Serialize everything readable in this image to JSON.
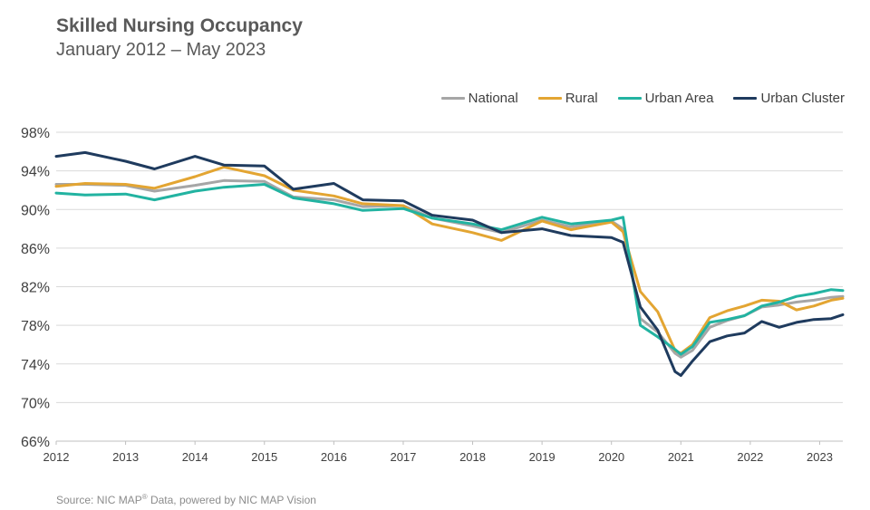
{
  "header": {
    "title": "Skilled Nursing Occupancy",
    "subtitle": "January 2012 –  May 2023"
  },
  "source": {
    "prefix": "Source: NIC MAP",
    "reg": "®",
    "suffix": " Data, powered by NIC MAP Vision"
  },
  "chart_data": {
    "type": "line",
    "title": "Skilled Nursing Occupancy",
    "subtitle": "January 2012 –  May 2023",
    "xlabel": "",
    "ylabel": "",
    "x_start": "2012-01",
    "x_end": "2023-05",
    "x_ticks": [
      "2012",
      "2013",
      "2014",
      "2015",
      "2016",
      "2017",
      "2018",
      "2019",
      "2020",
      "2021",
      "2022",
      "2023"
    ],
    "y_ticks": [
      "98%",
      "94%",
      "90%",
      "86%",
      "82%",
      "78%",
      "74%",
      "70%",
      "66%"
    ],
    "ylim": [
      66,
      98
    ],
    "grid": "horizontal",
    "legend_position": "top-right",
    "series": [
      {
        "name": "National",
        "color": "#a6a6a6",
        "points": [
          [
            "2012-01",
            92.6
          ],
          [
            "2012-06",
            92.6
          ],
          [
            "2013-01",
            92.5
          ],
          [
            "2013-06",
            91.9
          ],
          [
            "2014-01",
            92.5
          ],
          [
            "2014-06",
            93.0
          ],
          [
            "2015-01",
            92.9
          ],
          [
            "2015-06",
            91.3
          ],
          [
            "2016-01",
            91.0
          ],
          [
            "2016-06",
            90.3
          ],
          [
            "2017-01",
            90.4
          ],
          [
            "2017-06",
            89.1
          ],
          [
            "2018-01",
            88.3
          ],
          [
            "2018-06",
            87.6
          ],
          [
            "2019-01",
            88.9
          ],
          [
            "2019-06",
            88.2
          ],
          [
            "2020-01",
            88.8
          ],
          [
            "2020-03",
            88.0
          ],
          [
            "2020-06",
            78.7
          ],
          [
            "2020-09",
            77.3
          ],
          [
            "2020-12",
            75.1
          ],
          [
            "2021-01",
            74.7
          ],
          [
            "2021-03",
            75.4
          ],
          [
            "2021-06",
            77.8
          ],
          [
            "2021-09",
            78.5
          ],
          [
            "2021-12",
            79.0
          ],
          [
            "2022-03",
            79.9
          ],
          [
            "2022-06",
            80.1
          ],
          [
            "2022-09",
            80.4
          ],
          [
            "2022-12",
            80.6
          ],
          [
            "2023-03",
            80.9
          ],
          [
            "2023-05",
            81.0
          ]
        ]
      },
      {
        "name": "Rural",
        "color": "#e3a532",
        "points": [
          [
            "2012-01",
            92.4
          ],
          [
            "2012-06",
            92.7
          ],
          [
            "2013-01",
            92.6
          ],
          [
            "2013-06",
            92.2
          ],
          [
            "2014-01",
            93.4
          ],
          [
            "2014-06",
            94.4
          ],
          [
            "2015-01",
            93.5
          ],
          [
            "2015-06",
            92.0
          ],
          [
            "2016-01",
            91.4
          ],
          [
            "2016-06",
            90.6
          ],
          [
            "2017-01",
            90.4
          ],
          [
            "2017-06",
            88.5
          ],
          [
            "2018-01",
            87.6
          ],
          [
            "2018-06",
            86.8
          ],
          [
            "2019-01",
            88.8
          ],
          [
            "2019-06",
            87.9
          ],
          [
            "2020-01",
            88.7
          ],
          [
            "2020-03",
            87.7
          ],
          [
            "2020-06",
            81.5
          ],
          [
            "2020-09",
            79.4
          ],
          [
            "2020-12",
            75.4
          ],
          [
            "2021-01",
            75.1
          ],
          [
            "2021-03",
            76.0
          ],
          [
            "2021-06",
            78.8
          ],
          [
            "2021-09",
            79.5
          ],
          [
            "2021-12",
            80.0
          ],
          [
            "2022-03",
            80.6
          ],
          [
            "2022-06",
            80.5
          ],
          [
            "2022-09",
            79.6
          ],
          [
            "2022-12",
            80.0
          ],
          [
            "2023-03",
            80.6
          ],
          [
            "2023-05",
            80.8
          ]
        ]
      },
      {
        "name": "Urban Area",
        "color": "#22b3a1",
        "points": [
          [
            "2012-01",
            91.7
          ],
          [
            "2012-06",
            91.5
          ],
          [
            "2013-01",
            91.6
          ],
          [
            "2013-06",
            91.0
          ],
          [
            "2014-01",
            91.9
          ],
          [
            "2014-06",
            92.3
          ],
          [
            "2015-01",
            92.6
          ],
          [
            "2015-06",
            91.2
          ],
          [
            "2016-01",
            90.6
          ],
          [
            "2016-06",
            89.9
          ],
          [
            "2017-01",
            90.1
          ],
          [
            "2017-06",
            89.1
          ],
          [
            "2018-01",
            88.5
          ],
          [
            "2018-06",
            87.9
          ],
          [
            "2019-01",
            89.2
          ],
          [
            "2019-06",
            88.5
          ],
          [
            "2020-01",
            88.9
          ],
          [
            "2020-03",
            89.2
          ],
          [
            "2020-06",
            78.0
          ],
          [
            "2020-09",
            76.8
          ],
          [
            "2020-12",
            75.5
          ],
          [
            "2021-01",
            75.0
          ],
          [
            "2021-03",
            75.8
          ],
          [
            "2021-06",
            78.3
          ],
          [
            "2021-09",
            78.6
          ],
          [
            "2021-12",
            79.0
          ],
          [
            "2022-03",
            80.0
          ],
          [
            "2022-06",
            80.4
          ],
          [
            "2022-09",
            81.0
          ],
          [
            "2022-12",
            81.3
          ],
          [
            "2023-03",
            81.7
          ],
          [
            "2023-05",
            81.6
          ]
        ]
      },
      {
        "name": "Urban Cluster",
        "color": "#1f3b5e",
        "points": [
          [
            "2012-01",
            95.5
          ],
          [
            "2012-06",
            95.9
          ],
          [
            "2013-01",
            95.0
          ],
          [
            "2013-06",
            94.2
          ],
          [
            "2014-01",
            95.5
          ],
          [
            "2014-06",
            94.6
          ],
          [
            "2015-01",
            94.5
          ],
          [
            "2015-06",
            92.1
          ],
          [
            "2016-01",
            92.7
          ],
          [
            "2016-06",
            91.0
          ],
          [
            "2017-01",
            90.9
          ],
          [
            "2017-06",
            89.4
          ],
          [
            "2018-01",
            88.9
          ],
          [
            "2018-06",
            87.6
          ],
          [
            "2019-01",
            88.0
          ],
          [
            "2019-06",
            87.3
          ],
          [
            "2020-01",
            87.1
          ],
          [
            "2020-03",
            86.6
          ],
          [
            "2020-06",
            79.9
          ],
          [
            "2020-09",
            77.5
          ],
          [
            "2020-12",
            73.2
          ],
          [
            "2021-01",
            72.8
          ],
          [
            "2021-03",
            74.3
          ],
          [
            "2021-06",
            76.3
          ],
          [
            "2021-09",
            76.9
          ],
          [
            "2021-12",
            77.2
          ],
          [
            "2022-03",
            78.4
          ],
          [
            "2022-06",
            77.8
          ],
          [
            "2022-09",
            78.3
          ],
          [
            "2022-12",
            78.6
          ],
          [
            "2023-03",
            78.7
          ],
          [
            "2023-05",
            79.1
          ]
        ]
      }
    ]
  }
}
